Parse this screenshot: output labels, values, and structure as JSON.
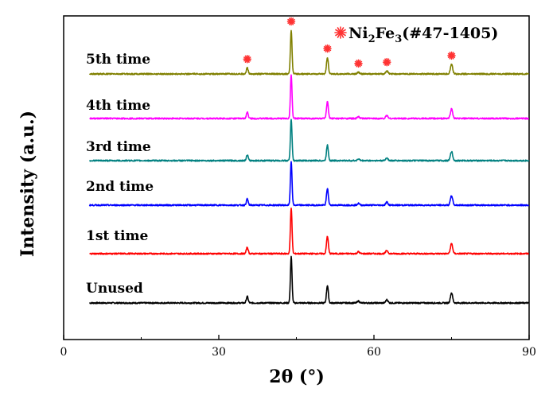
{
  "chart_data": {
    "type": "line",
    "title": "",
    "xlabel": "2θ (°)",
    "ylabel": "Intensity (a.u.)",
    "xlim": [
      0,
      90
    ],
    "x_ticks": [
      0,
      30,
      60,
      90
    ],
    "x_minor_ticks": [
      15,
      45,
      75
    ],
    "grid": false,
    "legend": {
      "placement": "top-right",
      "marker_color": "#ff3333",
      "label_prefix": "Ni",
      "sub1": "2",
      "mid": "Fe",
      "sub2": "3",
      "suffix": "(#47-1405)"
    },
    "x_start": 5,
    "x_end": 90,
    "peak_markers": [
      35.5,
      44.0,
      51.0,
      57.0,
      62.5,
      75.0
    ],
    "peaks": [
      {
        "pos": 35.5,
        "height": 0.14,
        "width": 0.25
      },
      {
        "pos": 44.0,
        "height": 1.0,
        "width": 0.22
      },
      {
        "pos": 51.0,
        "height": 0.38,
        "width": 0.25
      },
      {
        "pos": 57.0,
        "height": 0.04,
        "width": 0.3
      },
      {
        "pos": 62.5,
        "height": 0.07,
        "width": 0.3
      },
      {
        "pos": 75.0,
        "height": 0.22,
        "width": 0.3
      }
    ],
    "series": [
      {
        "name": "Unused",
        "color": "#000000",
        "scale": 1.0
      },
      {
        "name": "1st time",
        "color": "#ff0000",
        "scale": 1.0
      },
      {
        "name": "2nd time",
        "color": "#0000ff",
        "scale": 0.95
      },
      {
        "name": "3rd time",
        "color": "#008080",
        "scale": 0.9
      },
      {
        "name": "4th time",
        "color": "#ff00ff",
        "scale": 0.95
      },
      {
        "name": "5th time",
        "color": "#808000",
        "scale": 0.95
      }
    ]
  }
}
